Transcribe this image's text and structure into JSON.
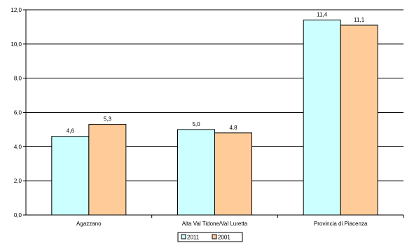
{
  "chart_data": {
    "type": "bar",
    "title": "",
    "xlabel": "",
    "ylabel": "",
    "categories": [
      "Agazzano",
      "Alta Val Tidone/Val Luretta",
      "Provincia di Piacenza"
    ],
    "series": [
      {
        "name": "2011",
        "values": [
          4.6,
          5.0,
          11.4
        ],
        "labels": [
          "4,6",
          "5,0",
          "11,4"
        ],
        "color": "#ccffff"
      },
      {
        "name": "2001",
        "values": [
          5.3,
          4.8,
          11.1
        ],
        "labels": [
          "5,3",
          "4,8",
          "11,1"
        ],
        "color": "#ffcc99"
      }
    ],
    "ylim": [
      0,
      12
    ],
    "yticks": [
      0,
      2,
      4,
      6,
      8,
      10,
      12
    ],
    "ytick_labels": [
      "0,0",
      "2,0",
      "4,0",
      "6,0",
      "8,0",
      "10,0",
      "12,0"
    ],
    "grid": true,
    "legend_position": "bottom-center"
  }
}
